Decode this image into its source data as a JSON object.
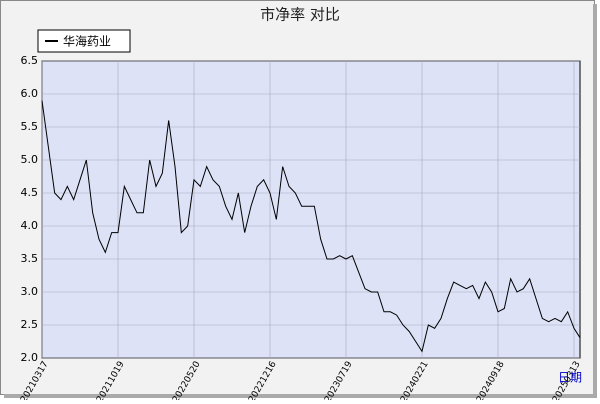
{
  "chart_data": {
    "type": "line",
    "title": "市净率  对比",
    "x_label": "日期",
    "categories": [
      "20210317",
      null,
      null,
      null,
      null,
      null,
      null,
      null,
      null,
      null,
      null,
      null,
      "20211019",
      null,
      null,
      null,
      null,
      null,
      null,
      null,
      null,
      null,
      null,
      null,
      "20220520",
      null,
      null,
      null,
      null,
      null,
      null,
      null,
      null,
      null,
      null,
      null,
      "20221216",
      null,
      null,
      null,
      null,
      null,
      null,
      null,
      null,
      null,
      null,
      null,
      "20230719",
      null,
      null,
      null,
      null,
      null,
      null,
      null,
      null,
      null,
      null,
      null,
      "20240221",
      null,
      null,
      null,
      null,
      null,
      null,
      null,
      null,
      null,
      null,
      null,
      "20240918",
      null,
      null,
      null,
      null,
      null,
      null,
      null,
      null,
      null,
      null,
      null,
      "20250313",
      null
    ],
    "series": [
      {
        "name": "华海药业",
        "color": "#000000",
        "values": [
          5.9,
          5.2,
          4.5,
          4.4,
          4.6,
          4.4,
          4.7,
          5.0,
          4.2,
          3.8,
          3.6,
          3.9,
          3.9,
          4.6,
          4.4,
          4.2,
          4.2,
          5.0,
          4.6,
          4.8,
          5.6,
          4.9,
          3.9,
          4.0,
          4.7,
          4.6,
          4.9,
          4.7,
          4.6,
          4.3,
          4.1,
          4.5,
          3.9,
          4.3,
          4.6,
          4.7,
          4.5,
          4.1,
          4.9,
          4.6,
          4.5,
          4.3,
          4.3,
          4.3,
          3.8,
          3.5,
          3.5,
          3.55,
          3.5,
          3.55,
          3.3,
          3.05,
          3.0,
          3.0,
          2.7,
          2.7,
          2.65,
          2.5,
          2.4,
          2.25,
          2.1,
          2.5,
          2.45,
          2.6,
          2.9,
          3.15,
          3.1,
          3.05,
          3.1,
          2.9,
          3.15,
          3.0,
          2.7,
          2.75,
          3.2,
          3.0,
          3.05,
          3.2,
          2.9,
          2.6,
          2.55,
          2.6,
          2.55,
          2.7,
          2.45,
          2.3
        ]
      }
    ],
    "ylim": [
      2,
      6.5
    ],
    "yticks": [
      {
        "value": 2,
        "label": "2.0"
      },
      2.5,
      {
        "value": 3,
        "label": "3.0"
      },
      3.5,
      {
        "value": 4,
        "label": "4.0"
      },
      4.5,
      {
        "value": 5,
        "label": "5.0"
      },
      5.5,
      {
        "value": 6,
        "label": "6.0"
      },
      6.5
    ],
    "grid": true
  }
}
